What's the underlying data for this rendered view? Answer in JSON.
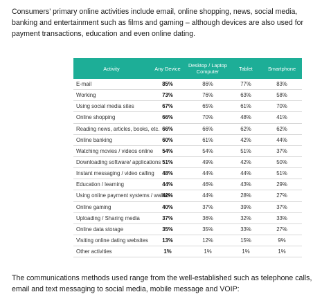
{
  "intro_text": "Consumers’ primary online activities include email, online shopping, news, social media, banking and entertainment such as films and gaming – although devices are also used for payment transactions, education and even online dating.",
  "table": {
    "headers": [
      "Activity",
      "Any Device",
      "Desktop / Laptop Computer",
      "Tablet",
      "Smartphone"
    ],
    "rows": [
      [
        "E-mail",
        "85%",
        "86%",
        "77%",
        "83%"
      ],
      [
        "Working",
        "73%",
        "76%",
        "63%",
        "58%"
      ],
      [
        "Using social media sites",
        "67%",
        "65%",
        "61%",
        "70%"
      ],
      [
        "Online shopping",
        "66%",
        "70%",
        "48%",
        "41%"
      ],
      [
        "Reading news, articles, books, etc.",
        "66%",
        "66%",
        "62%",
        "62%"
      ],
      [
        "Online banking",
        "60%",
        "61%",
        "42%",
        "44%"
      ],
      [
        "Watching movies / videos online",
        "54%",
        "54%",
        "51%",
        "37%"
      ],
      [
        "Downloading software/ applications",
        "51%",
        "49%",
        "42%",
        "50%"
      ],
      [
        "Instant messaging / video calling",
        "48%",
        "44%",
        "44%",
        "51%"
      ],
      [
        "Education / learning",
        "44%",
        "46%",
        "43%",
        "29%"
      ],
      [
        "Using online payment systems / wallets",
        "42%",
        "44%",
        "28%",
        "27%"
      ],
      [
        "Online gaming",
        "40%",
        "37%",
        "39%",
        "37%"
      ],
      [
        "Uploading / Sharing media",
        "37%",
        "36%",
        "32%",
        "33%"
      ],
      [
        "Online data storage",
        "35%",
        "35%",
        "33%",
        "27%"
      ],
      [
        "Visiting online dating websites",
        "13%",
        "12%",
        "15%",
        "9%"
      ],
      [
        "Other activities",
        "1%",
        "1%",
        "1%",
        "1%"
      ]
    ]
  },
  "outro_text": "The communications methods used range from the well-established such as telephone calls, email and text messaging to social media, mobile message and VOIP:",
  "colors": {
    "header_bg": "#1dae97",
    "header_text": "#ffffff",
    "row_divider": "#d7d7d7"
  }
}
